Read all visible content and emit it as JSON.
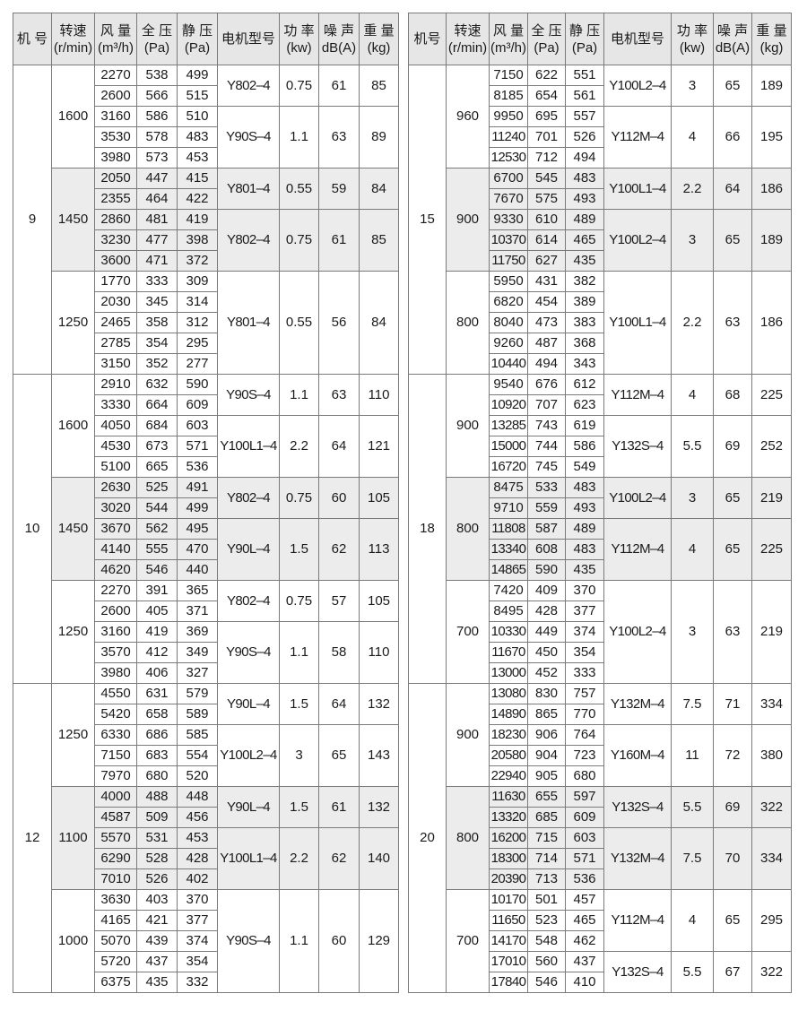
{
  "headers_left": [
    [
      "机  号"
    ],
    [
      "转速",
      "(r/min)"
    ],
    [
      "风 量",
      "(m³/h)"
    ],
    [
      "全 压",
      "(Pa)"
    ],
    [
      "静 压",
      "(Pa)"
    ],
    [
      "电机型号"
    ],
    [
      "功 率",
      "(kw)"
    ],
    [
      "噪 声",
      "dB(A)"
    ],
    [
      "重 量",
      "(kg)"
    ]
  ],
  "headers_right": [
    [
      "机号"
    ],
    [
      "转速",
      "(r/min)"
    ],
    [
      "风 量",
      "(m³/h)"
    ],
    [
      "全 压",
      "(Pa)"
    ],
    [
      "静 压",
      "(Pa)"
    ],
    [
      "电机型号"
    ],
    [
      "功 率",
      "(kw)"
    ],
    [
      "噪 声",
      "dB(A)"
    ],
    [
      "重 量",
      "(kg)"
    ]
  ],
  "colors": {
    "header_bg": "#e6e6e6",
    "shaded_block_bg": "#ececec",
    "grid": "#7a7a7a"
  },
  "left_table": [
    {
      "machine_no": "9",
      "speeds": [
        {
          "rpm": "1600",
          "rows": [
            [
              "2270",
              "538",
              "499"
            ],
            [
              "2600",
              "566",
              "515"
            ],
            [
              "3160",
              "586",
              "510"
            ],
            [
              "3530",
              "578",
              "483"
            ],
            [
              "3980",
              "573",
              "453"
            ]
          ],
          "motors": [
            {
              "model": "Y802–4",
              "power": "0.75",
              "noise": "61",
              "weight": "85",
              "span": 2
            },
            {
              "model": "Y90S–4",
              "power": "1.1",
              "noise": "63",
              "weight": "89",
              "span": 3
            }
          ]
        },
        {
          "rpm": "1450",
          "rows": [
            [
              "2050",
              "447",
              "415"
            ],
            [
              "2355",
              "464",
              "422"
            ],
            [
              "2860",
              "481",
              "419"
            ],
            [
              "3230",
              "477",
              "398"
            ],
            [
              "3600",
              "471",
              "372"
            ]
          ],
          "motors": [
            {
              "model": "Y801–4",
              "power": "0.55",
              "noise": "59",
              "weight": "84",
              "span": 2
            },
            {
              "model": "Y802–4",
              "power": "0.75",
              "noise": "61",
              "weight": "85",
              "span": 3
            }
          ]
        },
        {
          "rpm": "1250",
          "rows": [
            [
              "1770",
              "333",
              "309"
            ],
            [
              "2030",
              "345",
              "314"
            ],
            [
              "2465",
              "358",
              "312"
            ],
            [
              "2785",
              "354",
              "295"
            ],
            [
              "3150",
              "352",
              "277"
            ]
          ],
          "motors": [
            {
              "model": "Y801–4",
              "power": "0.55",
              "noise": "56",
              "weight": "84",
              "span": 5
            }
          ]
        }
      ]
    },
    {
      "machine_no": "10",
      "speeds": [
        {
          "rpm": "1600",
          "rows": [
            [
              "2910",
              "632",
              "590"
            ],
            [
              "3330",
              "664",
              "609"
            ],
            [
              "4050",
              "684",
              "603"
            ],
            [
              "4530",
              "673",
              "571"
            ],
            [
              "5100",
              "665",
              "536"
            ]
          ],
          "motors": [
            {
              "model": "Y90S–4",
              "power": "1.1",
              "noise": "63",
              "weight": "110",
              "span": 2
            },
            {
              "model": "Y100L1–4",
              "power": "2.2",
              "noise": "64",
              "weight": "121",
              "span": 3
            }
          ]
        },
        {
          "rpm": "1450",
          "rows": [
            [
              "2630",
              "525",
              "491"
            ],
            [
              "3020",
              "544",
              "499"
            ],
            [
              "3670",
              "562",
              "495"
            ],
            [
              "4140",
              "555",
              "470"
            ],
            [
              "4620",
              "546",
              "440"
            ]
          ],
          "motors": [
            {
              "model": "Y802–4",
              "power": "0.75",
              "noise": "60",
              "weight": "105",
              "span": 2
            },
            {
              "model": "Y90L–4",
              "power": "1.5",
              "noise": "62",
              "weight": "113",
              "span": 3
            }
          ]
        },
        {
          "rpm": "1250",
          "rows": [
            [
              "2270",
              "391",
              "365"
            ],
            [
              "2600",
              "405",
              "371"
            ],
            [
              "3160",
              "419",
              "369"
            ],
            [
              "3570",
              "412",
              "349"
            ],
            [
              "3980",
              "406",
              "327"
            ]
          ],
          "motors": [
            {
              "model": "Y802–4",
              "power": "0.75",
              "noise": "57",
              "weight": "105",
              "span": 2
            },
            {
              "model": "Y90S–4",
              "power": "1.1",
              "noise": "58",
              "weight": "110",
              "span": 3
            }
          ]
        }
      ]
    },
    {
      "machine_no": "12",
      "speeds": [
        {
          "rpm": "1250",
          "rows": [
            [
              "4550",
              "631",
              "579"
            ],
            [
              "5420",
              "658",
              "589"
            ],
            [
              "6330",
              "686",
              "585"
            ],
            [
              "7150",
              "683",
              "554"
            ],
            [
              "7970",
              "680",
              "520"
            ]
          ],
          "motors": [
            {
              "model": "Y90L–4",
              "power": "1.5",
              "noise": "64",
              "weight": "132",
              "span": 2
            },
            {
              "model": "Y100L2–4",
              "power": "3",
              "noise": "65",
              "weight": "143",
              "span": 3
            }
          ]
        },
        {
          "rpm": "1100",
          "rows": [
            [
              "4000",
              "488",
              "448"
            ],
            [
              "4587",
              "509",
              "456"
            ],
            [
              "5570",
              "531",
              "453"
            ],
            [
              "6290",
              "528",
              "428"
            ],
            [
              "7010",
              "526",
              "402"
            ]
          ],
          "motors": [
            {
              "model": "Y90L–4",
              "power": "1.5",
              "noise": "61",
              "weight": "132",
              "span": 2
            },
            {
              "model": "Y100L1–4",
              "power": "2.2",
              "noise": "62",
              "weight": "140",
              "span": 3
            }
          ]
        },
        {
          "rpm": "1000",
          "rows": [
            [
              "3630",
              "403",
              "370"
            ],
            [
              "4165",
              "421",
              "377"
            ],
            [
              "5070",
              "439",
              "374"
            ],
            [
              "5720",
              "437",
              "354"
            ],
            [
              "6375",
              "435",
              "332"
            ]
          ],
          "motors": [
            {
              "model": "Y90S–4",
              "power": "1.1",
              "noise": "60",
              "weight": "129",
              "span": 5
            }
          ]
        }
      ]
    }
  ],
  "right_table": [
    {
      "machine_no": "15",
      "speeds": [
        {
          "rpm": "960",
          "rows": [
            [
              "7150",
              "622",
              "551"
            ],
            [
              "8185",
              "654",
              "561"
            ],
            [
              "9950",
              "695",
              "557"
            ],
            [
              "11240",
              "701",
              "526"
            ],
            [
              "12530",
              "712",
              "494"
            ]
          ],
          "motors": [
            {
              "model": "Y100L2–4",
              "power": "3",
              "noise": "65",
              "weight": "189",
              "span": 2
            },
            {
              "model": "Y112M–4",
              "power": "4",
              "noise": "66",
              "weight": "195",
              "span": 3
            }
          ]
        },
        {
          "rpm": "900",
          "rows": [
            [
              "6700",
              "545",
              "483"
            ],
            [
              "7670",
              "575",
              "493"
            ],
            [
              "9330",
              "610",
              "489"
            ],
            [
              "10370",
              "614",
              "465"
            ],
            [
              "11750",
              "627",
              "435"
            ]
          ],
          "motors": [
            {
              "model": "Y100L1–4",
              "power": "2.2",
              "noise": "64",
              "weight": "186",
              "span": 2
            },
            {
              "model": "Y100L2–4",
              "power": "3",
              "noise": "65",
              "weight": "189",
              "span": 3
            }
          ]
        },
        {
          "rpm": "800",
          "rows": [
            [
              "5950",
              "431",
              "382"
            ],
            [
              "6820",
              "454",
              "389"
            ],
            [
              "8040",
              "473",
              "383"
            ],
            [
              "9260",
              "487",
              "368"
            ],
            [
              "10440",
              "494",
              "343"
            ]
          ],
          "motors": [
            {
              "model": "Y100L1–4",
              "power": "2.2",
              "noise": "63",
              "weight": "186",
              "span": 5
            }
          ]
        }
      ]
    },
    {
      "machine_no": "18",
      "speeds": [
        {
          "rpm": "900",
          "rows": [
            [
              "9540",
              "676",
              "612"
            ],
            [
              "10920",
              "707",
              "623"
            ],
            [
              "13285",
              "743",
              "619"
            ],
            [
              "15000",
              "744",
              "586"
            ],
            [
              "16720",
              "745",
              "549"
            ]
          ],
          "motors": [
            {
              "model": "Y112M–4",
              "power": "4",
              "noise": "68",
              "weight": "225",
              "span": 2
            },
            {
              "model": "Y132S–4",
              "power": "5.5",
              "noise": "69",
              "weight": "252",
              "span": 3
            }
          ]
        },
        {
          "rpm": "800",
          "rows": [
            [
              "8475",
              "533",
              "483"
            ],
            [
              "9710",
              "559",
              "493"
            ],
            [
              "11808",
              "587",
              "489"
            ],
            [
              "13340",
              "608",
              "483"
            ],
            [
              "14865",
              "590",
              "435"
            ]
          ],
          "motors": [
            {
              "model": "Y100L2–4",
              "power": "3",
              "noise": "65",
              "weight": "219",
              "span": 2
            },
            {
              "model": "Y112M–4",
              "power": "4",
              "noise": "65",
              "weight": "225",
              "span": 3
            }
          ]
        },
        {
          "rpm": "700",
          "rows": [
            [
              "7420",
              "409",
              "370"
            ],
            [
              "8495",
              "428",
              "377"
            ],
            [
              "10330",
              "449",
              "374"
            ],
            [
              "11670",
              "450",
              "354"
            ],
            [
              "13000",
              "452",
              "333"
            ]
          ],
          "motors": [
            {
              "model": "Y100L2–4",
              "power": "3",
              "noise": "63",
              "weight": "219",
              "span": 5
            }
          ]
        }
      ]
    },
    {
      "machine_no": "20",
      "speeds": [
        {
          "rpm": "900",
          "rows": [
            [
              "13080",
              "830",
              "757"
            ],
            [
              "14890",
              "865",
              "770"
            ],
            [
              "18230",
              "906",
              "764"
            ],
            [
              "20580",
              "904",
              "723"
            ],
            [
              "22940",
              "905",
              "680"
            ]
          ],
          "motors": [
            {
              "model": "Y132M–4",
              "power": "7.5",
              "noise": "71",
              "weight": "334",
              "span": 2
            },
            {
              "model": "Y160M–4",
              "power": "11",
              "noise": "72",
              "weight": "380",
              "span": 3
            }
          ]
        },
        {
          "rpm": "800",
          "rows": [
            [
              "11630",
              "655",
              "597"
            ],
            [
              "13320",
              "685",
              "609"
            ],
            [
              "16200",
              "715",
              "603"
            ],
            [
              "18300",
              "714",
              "571"
            ],
            [
              "20390",
              "713",
              "536"
            ]
          ],
          "motors": [
            {
              "model": "Y132S–4",
              "power": "5.5",
              "noise": "69",
              "weight": "322",
              "span": 2
            },
            {
              "model": "Y132M–4",
              "power": "7.5",
              "noise": "70",
              "weight": "334",
              "span": 3
            }
          ]
        },
        {
          "rpm": "700",
          "rows": [
            [
              "10170",
              "501",
              "457"
            ],
            [
              "11650",
              "523",
              "465"
            ],
            [
              "14170",
              "548",
              "462"
            ],
            [
              "17010",
              "560",
              "437"
            ],
            [
              "17840",
              "546",
              "410"
            ]
          ],
          "motors": [
            {
              "model": "Y112M–4",
              "power": "4",
              "noise": "65",
              "weight": "295",
              "span": 3
            },
            {
              "model": "Y132S–4",
              "power": "5.5",
              "noise": "67",
              "weight": "322",
              "span": 2
            }
          ]
        }
      ]
    }
  ]
}
